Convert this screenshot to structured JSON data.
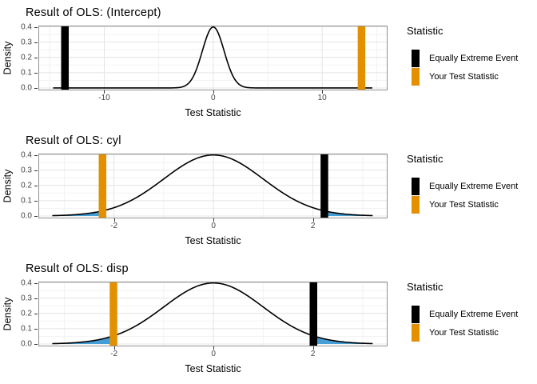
{
  "style": {
    "colors": {
      "test_statistic": "#E39000",
      "equally_extreme": "#000000",
      "tail_fill": "#459FD6",
      "curve": "#000000",
      "grid_major": "#E4E4E4",
      "grid_minor": "#F2F2F2",
      "panel_border": "#919191",
      "panel_bg": "#FFFFFF",
      "tick_text": "#444444",
      "page_bg": "#FFFFFF"
    }
  },
  "legend": {
    "title": "Statistic",
    "items": [
      {
        "id": "equally-extreme-event",
        "label": "Equally Extreme Event",
        "color_key": "equally_extreme"
      },
      {
        "id": "your-test-statistic",
        "label": "Your Test Statistic",
        "color_key": "test_statistic"
      }
    ]
  },
  "chart_data": [
    {
      "type": "area",
      "title": "Result of OLS: (Intercept)",
      "xlabel": "Test Statistic",
      "ylabel": "Density",
      "distribution": "standard-normal-density",
      "grid": true,
      "legend_position": "right",
      "xlim": [
        -16.05,
        16.0
      ],
      "ylim": [
        0,
        0.4
      ],
      "x_ticks": [
        {
          "v": -10,
          "label": "-10"
        },
        {
          "v": 0,
          "label": "0"
        },
        {
          "v": 10,
          "label": "10"
        }
      ],
      "x_minor": [
        -15,
        -5,
        5,
        15
      ],
      "y_ticks": [
        {
          "v": 0.0,
          "label": "0.0"
        },
        {
          "v": 0.1,
          "label": "0.1"
        },
        {
          "v": 0.2,
          "label": "0.2"
        },
        {
          "v": 0.3,
          "label": "0.3"
        },
        {
          "v": 0.4,
          "label": "0.4"
        }
      ],
      "y_minor": [
        0.05,
        0.15,
        0.25,
        0.35
      ],
      "curve_range": [
        -14.7,
        14.6
      ],
      "curve_peak_density": 0.399,
      "your_test_statistic": 13.61,
      "equally_extreme_event": -13.61,
      "shaded_tails": [
        [
          -14.7,
          -13.61
        ],
        [
          13.61,
          14.6
        ]
      ]
    },
    {
      "type": "area",
      "title": "Result of OLS: cyl",
      "xlabel": "Test Statistic",
      "ylabel": "Density",
      "distribution": "standard-normal-density",
      "grid": true,
      "legend_position": "right",
      "xlim": [
        -3.52,
        3.5
      ],
      "ylim": [
        0,
        0.4
      ],
      "x_ticks": [
        {
          "v": -2,
          "label": "-2"
        },
        {
          "v": 0,
          "label": "0"
        },
        {
          "v": 2,
          "label": "2"
        }
      ],
      "x_minor": [
        -3,
        -1,
        1,
        3
      ],
      "y_ticks": [
        {
          "v": 0.0,
          "label": "0.0"
        },
        {
          "v": 0.1,
          "label": "0.1"
        },
        {
          "v": 0.2,
          "label": "0.2"
        },
        {
          "v": 0.3,
          "label": "0.3"
        },
        {
          "v": 0.4,
          "label": "0.4"
        }
      ],
      "y_minor": [
        0.05,
        0.15,
        0.25,
        0.35
      ],
      "curve_range": [
        -3.24,
        3.2
      ],
      "curve_peak_density": 0.399,
      "your_test_statistic": -2.23,
      "equally_extreme_event": 2.23,
      "shaded_tails": [
        [
          -3.24,
          -2.23
        ],
        [
          2.23,
          3.2
        ]
      ]
    },
    {
      "type": "area",
      "title": "Result of OLS: disp",
      "xlabel": "Test Statistic",
      "ylabel": "Density",
      "distribution": "standard-normal-density",
      "grid": true,
      "legend_position": "right",
      "xlim": [
        -3.52,
        3.5
      ],
      "ylim": [
        0,
        0.4
      ],
      "x_ticks": [
        {
          "v": -2,
          "label": "-2"
        },
        {
          "v": 0,
          "label": "0"
        },
        {
          "v": 2,
          "label": "2"
        }
      ],
      "x_minor": [
        -3,
        -1,
        1,
        3
      ],
      "y_ticks": [
        {
          "v": 0.0,
          "label": "0.0"
        },
        {
          "v": 0.1,
          "label": "0.1"
        },
        {
          "v": 0.2,
          "label": "0.2"
        },
        {
          "v": 0.3,
          "label": "0.3"
        },
        {
          "v": 0.4,
          "label": "0.4"
        }
      ],
      "y_minor": [
        0.05,
        0.15,
        0.25,
        0.35
      ],
      "curve_range": [
        -3.24,
        3.2
      ],
      "curve_peak_density": 0.399,
      "your_test_statistic": -2.01,
      "equally_extreme_event": 2.01,
      "shaded_tails": [
        [
          -3.24,
          -2.01
        ],
        [
          2.01,
          3.2
        ]
      ]
    }
  ]
}
